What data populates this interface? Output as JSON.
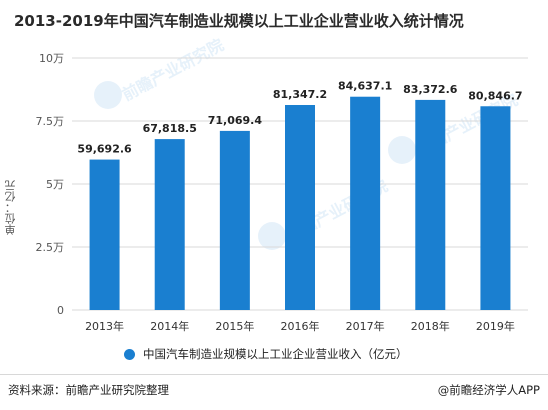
{
  "title": "2013-2019年中国汽车制造业规模以上工业企业营业收入统计情况",
  "source": "资料来源：前瞻产业研究院整理",
  "credit": "@前瞻经济学人APP",
  "watermark": "前瞻产业研究院",
  "colors": {
    "bar": "#1a7fd0",
    "grid": "#d9d9d9",
    "axis_text": "#555555"
  },
  "chart_data": {
    "type": "bar",
    "categories": [
      "2013年",
      "2014年",
      "2015年",
      "2016年",
      "2017年",
      "2018年",
      "2019年"
    ],
    "series": [
      {
        "name": "中国汽车制造业规模以上工业企业营业收入（亿元）",
        "values": [
          59692.6,
          67818.5,
          71069.4,
          81347.2,
          84637.1,
          83372.6,
          80846.7
        ],
        "labels": [
          "59,692.6",
          "67,818.5",
          "71,069.4",
          "81,347.2",
          "84,637.1",
          "83,372.6",
          "80,846.7"
        ]
      }
    ],
    "ylabel": "单位：亿元",
    "ylim": [
      0,
      100000
    ],
    "yticks": [
      0,
      25000,
      50000,
      75000,
      100000
    ],
    "ytick_labels": [
      "0",
      "2.5万",
      "5万",
      "7.5万",
      "10万"
    ],
    "grid": true,
    "legend": "bottom"
  }
}
